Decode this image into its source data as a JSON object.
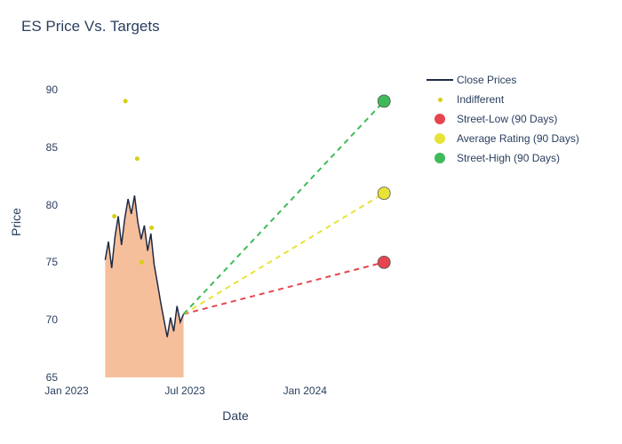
{
  "chart": {
    "title": "ES Price Vs. Targets",
    "title_fontsize": 17,
    "title_color": "#2a3f5f",
    "background_color": "#ffffff",
    "xlabel": "Date",
    "ylabel": "Price",
    "axis_label_fontsize": 14,
    "axis_label_color": "#2a3f5f",
    "tick_fontsize": 12,
    "tick_color": "#2a3f5f",
    "ylim": [
      65,
      92
    ],
    "yticks": [
      65,
      70,
      75,
      80,
      85,
      90
    ],
    "x_range_ms": [
      1672531200000,
      1717200000000
    ],
    "xticks": [
      {
        "label": "Jan 2023",
        "ms": 1672531200000
      },
      {
        "label": "Jul 2023",
        "ms": 1688169600000
      },
      {
        "label": "Jan 2024",
        "ms": 1704067200000
      }
    ],
    "close_prices": {
      "line_color": "#1f2a44",
      "line_width": 1.5,
      "fill_color": "#f5b48a",
      "fill_opacity": 0.85,
      "series": [
        {
          "ms": 1677628800000,
          "y": 75.2
        },
        {
          "ms": 1678060800000,
          "y": 76.8
        },
        {
          "ms": 1678492800000,
          "y": 74.5
        },
        {
          "ms": 1678924800000,
          "y": 77.2
        },
        {
          "ms": 1679356800000,
          "y": 79.0
        },
        {
          "ms": 1679788800000,
          "y": 76.5
        },
        {
          "ms": 1680220800000,
          "y": 78.8
        },
        {
          "ms": 1680652800000,
          "y": 80.5
        },
        {
          "ms": 1681084800000,
          "y": 79.2
        },
        {
          "ms": 1681516800000,
          "y": 80.8
        },
        {
          "ms": 1681948800000,
          "y": 78.5
        },
        {
          "ms": 1682380800000,
          "y": 77.0
        },
        {
          "ms": 1682812800000,
          "y": 78.2
        },
        {
          "ms": 1683244800000,
          "y": 76.0
        },
        {
          "ms": 1683676800000,
          "y": 77.5
        },
        {
          "ms": 1684108800000,
          "y": 74.8
        },
        {
          "ms": 1684540800000,
          "y": 73.2
        },
        {
          "ms": 1684972800000,
          "y": 71.5
        },
        {
          "ms": 1685404800000,
          "y": 70.0
        },
        {
          "ms": 1685836800000,
          "y": 68.5
        },
        {
          "ms": 1686268800000,
          "y": 70.2
        },
        {
          "ms": 1686700800000,
          "y": 69.0
        },
        {
          "ms": 1687132800000,
          "y": 71.2
        },
        {
          "ms": 1687564800000,
          "y": 69.8
        },
        {
          "ms": 1687996800000,
          "y": 70.5
        }
      ]
    },
    "indifferent_points": {
      "color": "#d6d014",
      "marker_size": 5,
      "points": [
        {
          "ms": 1678838400000,
          "y": 79.0
        },
        {
          "ms": 1680307200000,
          "y": 89.0
        },
        {
          "ms": 1681862400000,
          "y": 84.0
        },
        {
          "ms": 1682467200000,
          "y": 75.0
        },
        {
          "ms": 1683763200000,
          "y": 78.0
        }
      ]
    },
    "projection_origin": {
      "ms": 1687996800000,
      "y": 70.5
    },
    "projection_end_ms": 1714521600000,
    "targets": [
      {
        "key": "street_low",
        "label": "Street-Low (90 Days)",
        "y": 75,
        "color": "#e64550"
      },
      {
        "key": "average",
        "label": "Average Rating (90 Days)",
        "y": 81,
        "color": "#e8e337"
      },
      {
        "key": "street_high",
        "label": "Street-High (90 Days)",
        "y": 89,
        "color": "#3fba5a"
      }
    ],
    "target_marker_size": 14,
    "projection_dash": "6,5",
    "projection_line_width": 2,
    "legend": {
      "items": [
        {
          "type": "line",
          "color": "#1f2a44",
          "label": "Close Prices"
        },
        {
          "type": "dot",
          "color": "#d6d014",
          "size": 5,
          "label": "Indifferent"
        },
        {
          "type": "dot",
          "color": "#e64550",
          "size": 12,
          "label": "Street-Low (90 Days)"
        },
        {
          "type": "dot",
          "color": "#e8e337",
          "size": 12,
          "label": "Average Rating (90 Days)"
        },
        {
          "type": "dot",
          "color": "#3fba5a",
          "size": 12,
          "label": "Street-High (90 Days)"
        }
      ]
    }
  }
}
